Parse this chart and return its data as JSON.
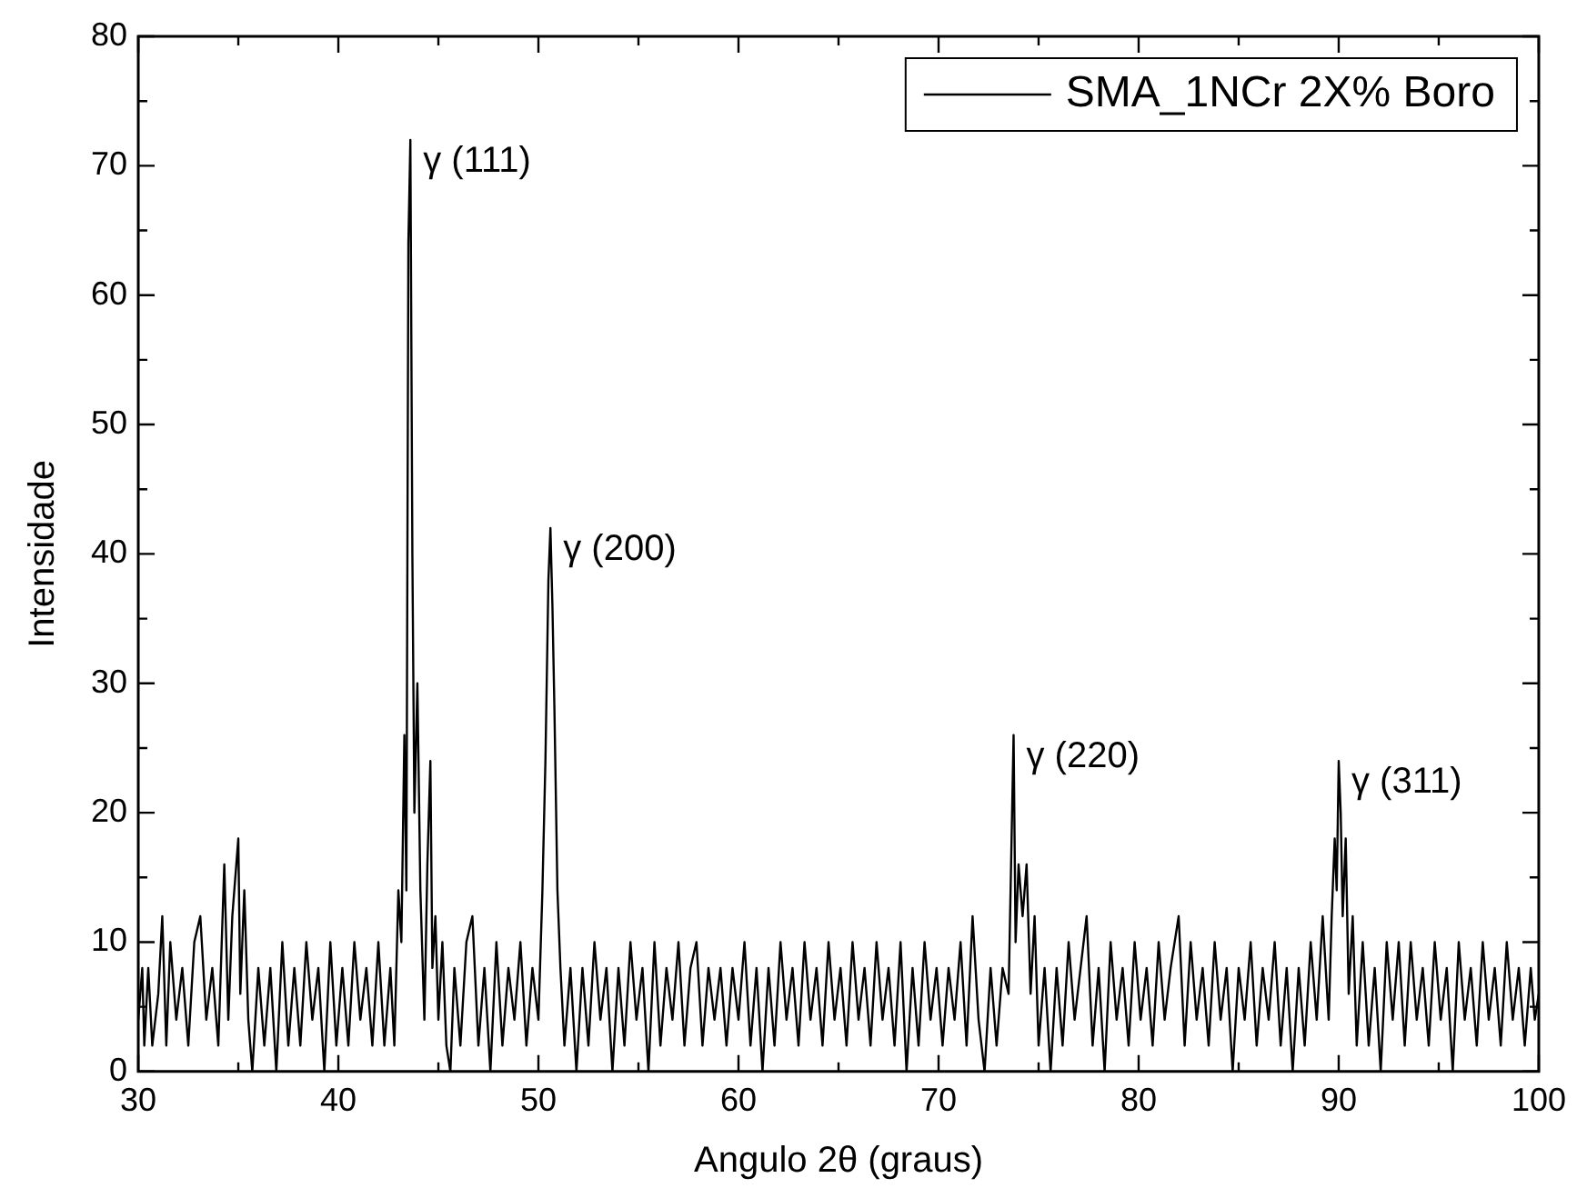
{
  "chart_data": {
    "type": "line",
    "xlabel": "Angulo 2θ (graus)",
    "ylabel": "Intensidade",
    "legend": "top right",
    "grid": false,
    "marker": "none",
    "line_style": "solid",
    "xlim": [
      30,
      100
    ],
    "ylim": [
      0,
      80
    ],
    "xticks": [
      30,
      {
        "value": 35,
        "label": null
      },
      40,
      {
        "value": 45,
        "label": null
      },
      50,
      {
        "value": 55,
        "label": null
      },
      60,
      {
        "value": 65,
        "label": null
      },
      70,
      {
        "value": 75,
        "label": null
      },
      80,
      {
        "value": 85,
        "label": null
      },
      90,
      {
        "value": 95,
        "label": null
      },
      100
    ],
    "yticks": [
      0,
      {
        "value": 5,
        "label": null
      },
      10,
      {
        "value": 15,
        "label": null
      },
      20,
      {
        "value": 25,
        "label": null
      },
      30,
      {
        "value": 35,
        "label": null
      },
      40,
      {
        "value": 45,
        "label": null
      },
      50,
      {
        "value": 55,
        "label": null
      },
      60,
      {
        "value": 65,
        "label": null
      },
      70,
      {
        "value": 75,
        "label": null
      },
      80
    ],
    "annotations": [
      {
        "text": "γ (111)",
        "x": 43.6,
        "y": 72
      },
      {
        "text": "γ (200)",
        "x": 50.6,
        "y": 42
      },
      {
        "text": "γ (220)",
        "x": 73.75,
        "y": 26
      },
      {
        "text": "γ (311)",
        "x": 90.0,
        "y": 24
      }
    ],
    "series": [
      {
        "name": "SMA_1NCr 2X% Boro",
        "color": "#000000",
        "x": [
          30.0,
          30.2,
          30.3,
          30.5,
          30.7,
          31.0,
          31.2,
          31.4,
          31.6,
          31.9,
          32.2,
          32.5,
          32.8,
          33.1,
          33.4,
          33.7,
          34.0,
          34.3,
          34.5,
          34.7,
          35.0,
          35.1,
          35.3,
          35.5,
          35.7,
          36.0,
          36.3,
          36.6,
          36.9,
          37.2,
          37.5,
          37.8,
          38.1,
          38.4,
          38.7,
          39.0,
          39.3,
          39.6,
          39.9,
          40.2,
          40.5,
          40.8,
          41.1,
          41.4,
          41.7,
          42.0,
          42.3,
          42.6,
          42.8,
          43.0,
          43.15,
          43.3,
          43.4,
          43.5,
          43.6,
          43.7,
          43.8,
          43.95,
          44.1,
          44.3,
          44.45,
          44.6,
          44.7,
          44.85,
          45.0,
          45.2,
          45.4,
          45.6,
          45.8,
          46.1,
          46.4,
          46.7,
          47.0,
          47.3,
          47.6,
          47.9,
          48.2,
          48.5,
          48.8,
          49.1,
          49.4,
          49.7,
          50.0,
          50.2,
          50.35,
          50.5,
          50.6,
          50.7,
          50.8,
          50.95,
          51.1,
          51.3,
          51.6,
          51.9,
          52.2,
          52.5,
          52.8,
          53.1,
          53.4,
          53.7,
          54.0,
          54.3,
          54.6,
          54.9,
          55.2,
          55.5,
          55.8,
          56.1,
          56.4,
          56.7,
          57.0,
          57.3,
          57.6,
          57.9,
          58.2,
          58.5,
          58.8,
          59.1,
          59.4,
          59.7,
          60.0,
          60.3,
          60.6,
          60.9,
          61.2,
          61.5,
          61.8,
          62.1,
          62.4,
          62.7,
          63.0,
          63.3,
          63.6,
          63.9,
          64.2,
          64.5,
          64.8,
          65.1,
          65.4,
          65.7,
          66.0,
          66.3,
          66.6,
          66.9,
          67.2,
          67.5,
          67.8,
          68.1,
          68.4,
          68.7,
          69.0,
          69.3,
          69.6,
          69.9,
          70.2,
          70.5,
          70.8,
          71.1,
          71.4,
          71.7,
          72.0,
          72.3,
          72.6,
          72.9,
          73.2,
          73.5,
          73.6,
          73.75,
          73.85,
          74.0,
          74.2,
          74.4,
          74.6,
          74.8,
          75.0,
          75.3,
          75.6,
          75.9,
          76.2,
          76.5,
          76.8,
          77.1,
          77.4,
          77.7,
          78.0,
          78.3,
          78.6,
          78.9,
          79.2,
          79.5,
          79.8,
          80.1,
          80.4,
          80.7,
          81.0,
          81.3,
          81.6,
          82.0,
          82.3,
          82.6,
          82.9,
          83.2,
          83.5,
          83.8,
          84.1,
          84.4,
          84.7,
          85.0,
          85.3,
          85.6,
          85.9,
          86.2,
          86.5,
          86.8,
          87.1,
          87.4,
          87.7,
          88.0,
          88.3,
          88.6,
          88.9,
          89.2,
          89.5,
          89.65,
          89.8,
          89.9,
          90.0,
          90.1,
          90.2,
          90.35,
          90.5,
          90.7,
          90.9,
          91.2,
          91.5,
          91.8,
          92.1,
          92.4,
          92.7,
          93.0,
          93.3,
          93.6,
          93.9,
          94.2,
          94.5,
          94.8,
          95.1,
          95.4,
          95.7,
          96.0,
          96.3,
          96.6,
          96.9,
          97.2,
          97.5,
          97.8,
          98.1,
          98.4,
          98.7,
          99.0,
          99.3,
          99.6,
          99.8,
          100.0
        ],
        "values": [
          4,
          8,
          2,
          8,
          2,
          6,
          12,
          2,
          10,
          4,
          8,
          2,
          10,
          12,
          4,
          8,
          2,
          16,
          4,
          12,
          18,
          6,
          14,
          4,
          0,
          8,
          2,
          8,
          0,
          10,
          2,
          8,
          2,
          10,
          4,
          8,
          0,
          10,
          2,
          8,
          2,
          10,
          4,
          8,
          2,
          10,
          2,
          8,
          2,
          14,
          10,
          26,
          14,
          64,
          72,
          40,
          20,
          30,
          14,
          4,
          16,
          24,
          8,
          12,
          4,
          10,
          2,
          0,
          8,
          2,
          10,
          12,
          2,
          8,
          0,
          10,
          2,
          8,
          4,
          10,
          2,
          8,
          4,
          14,
          24,
          38,
          42,
          36,
          28,
          14,
          8,
          2,
          8,
          0,
          8,
          2,
          10,
          4,
          8,
          0,
          8,
          2,
          10,
          4,
          8,
          0,
          10,
          2,
          8,
          4,
          10,
          2,
          8,
          10,
          2,
          8,
          4,
          8,
          2,
          8,
          4,
          10,
          2,
          8,
          0,
          8,
          2,
          10,
          4,
          8,
          2,
          10,
          4,
          8,
          2,
          10,
          4,
          8,
          2,
          10,
          4,
          8,
          2,
          10,
          4,
          8,
          2,
          10,
          0,
          8,
          2,
          10,
          4,
          8,
          2,
          8,
          4,
          10,
          2,
          12,
          4,
          0,
          8,
          2,
          8,
          6,
          14,
          26,
          10,
          16,
          12,
          16,
          6,
          12,
          2,
          8,
          0,
          8,
          2,
          10,
          4,
          8,
          12,
          2,
          8,
          0,
          10,
          4,
          8,
          2,
          10,
          4,
          8,
          2,
          10,
          4,
          8,
          12,
          2,
          10,
          4,
          8,
          2,
          10,
          4,
          8,
          0,
          8,
          4,
          10,
          2,
          8,
          4,
          10,
          2,
          8,
          0,
          8,
          2,
          10,
          4,
          12,
          4,
          12,
          18,
          14,
          24,
          20,
          12,
          18,
          6,
          12,
          2,
          10,
          2,
          8,
          0,
          10,
          4,
          10,
          2,
          10,
          4,
          8,
          2,
          10,
          4,
          8,
          0,
          10,
          4,
          8,
          2,
          10,
          4,
          8,
          2,
          10,
          4,
          8,
          2,
          8,
          4,
          6
        ]
      }
    ]
  }
}
